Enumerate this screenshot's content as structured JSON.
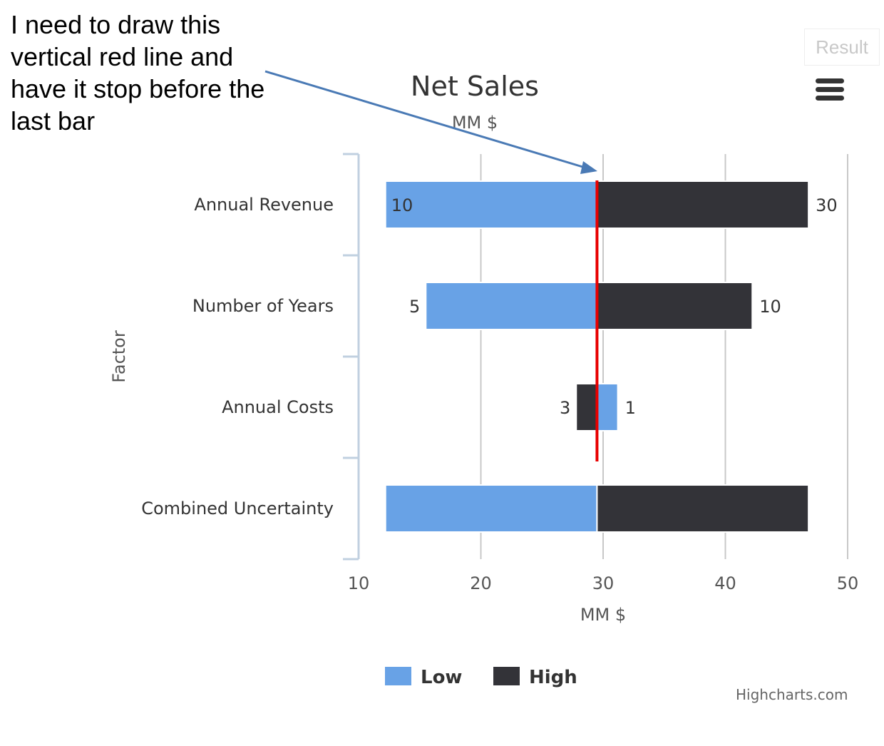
{
  "annotation": {
    "text": "I need to draw this vertical red line and have it stop before the last bar"
  },
  "result_button": {
    "label": "Result"
  },
  "menu": {
    "icon": "hamburger-menu-icon"
  },
  "credits": {
    "text": "Highcharts.com"
  },
  "chart_data": {
    "type": "bar",
    "orientation": "horizontal",
    "stacking": "tornado",
    "title": "Net Sales",
    "subtitle": "MM $",
    "xlabel": "Factor",
    "ylabel": "MM $",
    "xlim": [
      10,
      50
    ],
    "x_ticks": [
      "10",
      "20",
      "30",
      "40",
      "50"
    ],
    "base_value": 29.5,
    "categories": [
      "Annual Revenue",
      "Number of Years",
      "Annual Costs",
      "Combined Uncertainty"
    ],
    "series": [
      {
        "name": "Low",
        "color": "#68a2e6",
        "ranges": [
          [
            12.2,
            29.5
          ],
          [
            15.5,
            29.5
          ],
          [
            29.5,
            31.2
          ],
          [
            12.2,
            29.5
          ]
        ],
        "labels": [
          "10",
          "5",
          "1",
          ""
        ]
      },
      {
        "name": "High",
        "color": "#333338",
        "ranges": [
          [
            29.5,
            46.8
          ],
          [
            29.5,
            42.2
          ],
          [
            27.8,
            29.5
          ],
          [
            29.5,
            46.8
          ]
        ],
        "labels": [
          "30",
          "10",
          "3",
          ""
        ]
      }
    ],
    "reference_line": {
      "value": 29.5,
      "color": "#e80000",
      "extends_over_categories": 3
    },
    "grid": true,
    "legend_position": "bottom-center"
  }
}
